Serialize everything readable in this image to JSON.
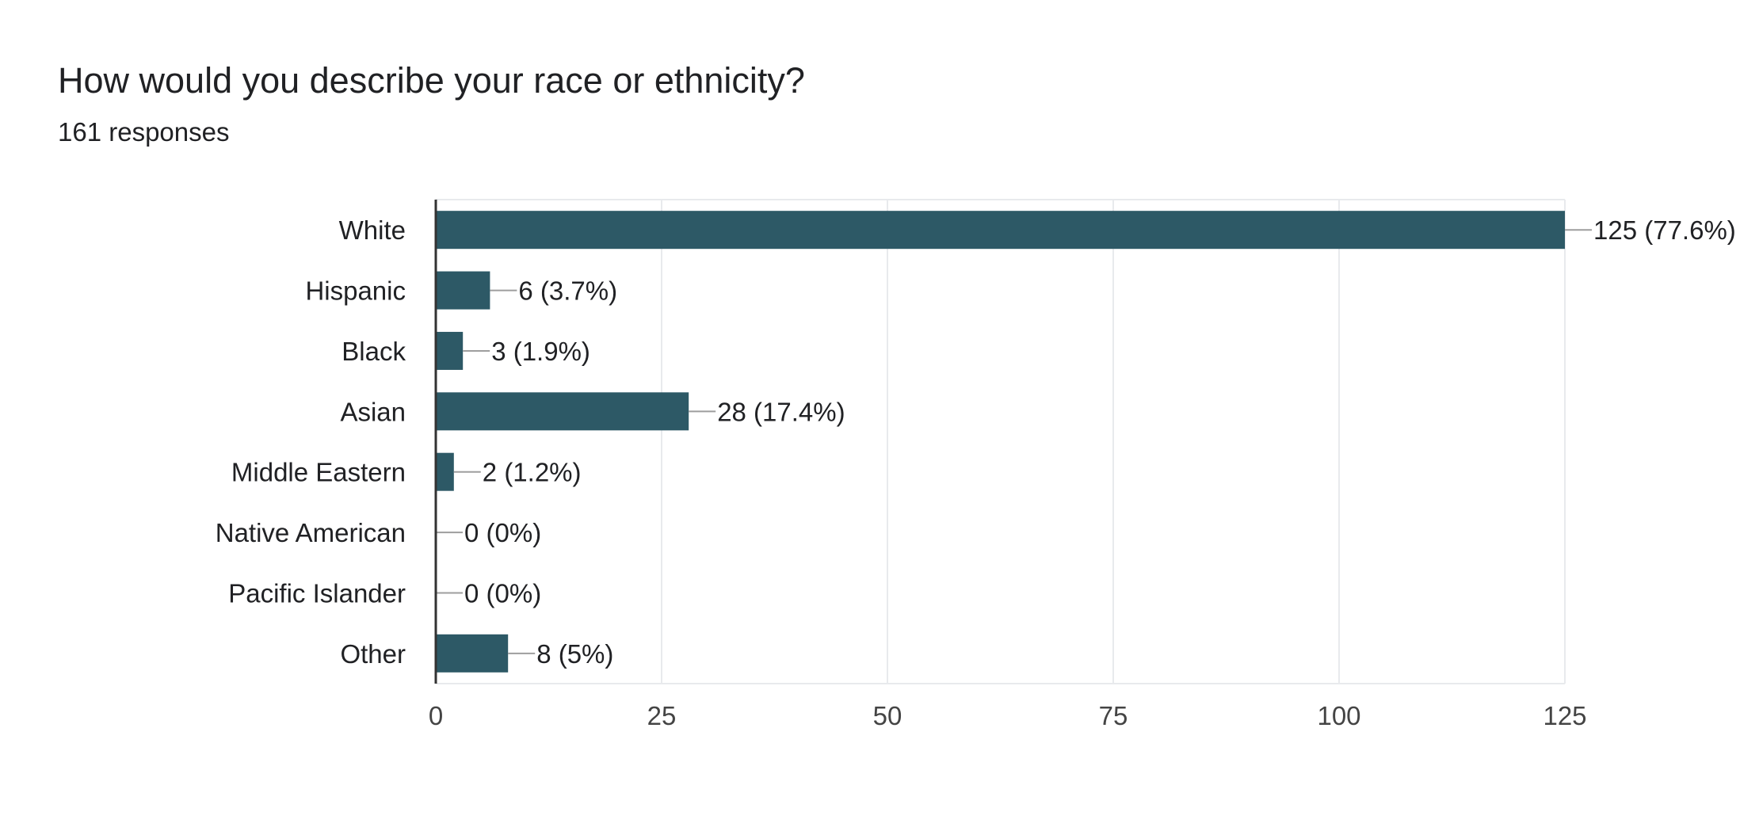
{
  "question": {
    "title": "How would you describe your race or ethnicity?",
    "responses": "161 responses"
  },
  "colors": {
    "bar": "#2d5966",
    "grid": "#e8eaed",
    "axis": "#333333",
    "leader": "#9e9e9e",
    "text": "#202124",
    "tick_text": "#444444"
  },
  "chart_data": {
    "type": "bar",
    "orientation": "horizontal",
    "categories": [
      "White",
      "Hispanic",
      "Black",
      "Asian",
      "Middle Eastern",
      "Native American",
      "Pacific Islander",
      "Other"
    ],
    "values": [
      125,
      6,
      3,
      28,
      2,
      0,
      0,
      8
    ],
    "data_labels": [
      "125 (77.6%)",
      "6 (3.7%)",
      "3 (1.9%)",
      "28 (17.4%)",
      "2 (1.2%)",
      "0 (0%)",
      "0 (0%)",
      "8 (5%)"
    ],
    "xlim": [
      0,
      125
    ],
    "xticks": [
      0,
      25,
      50,
      75,
      100,
      125
    ],
    "xtick_labels": [
      "0",
      "25",
      "50",
      "75",
      "100",
      "125"
    ],
    "grid": true
  }
}
